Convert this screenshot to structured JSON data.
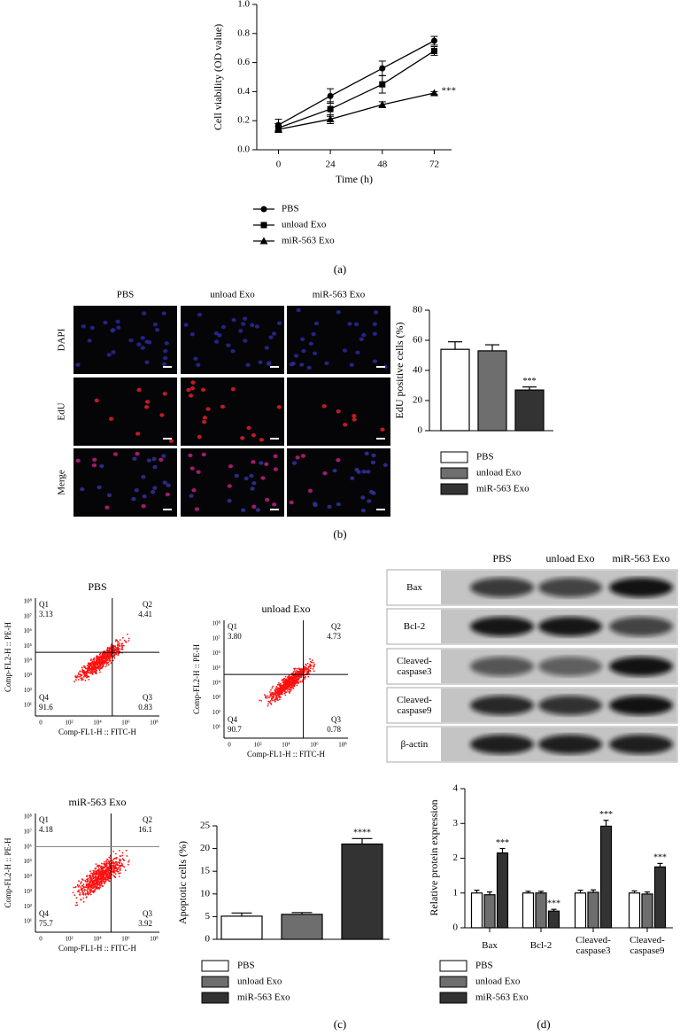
{
  "panel_labels": [
    "(a)",
    "(b)",
    "(c)",
    "(d)"
  ],
  "chart_data": [
    {
      "type": "line",
      "xlabel": "Time (h)",
      "ylabel": "Cell viability (OD value)",
      "x": [
        0,
        24,
        48,
        72
      ],
      "xlim": [
        -10,
        80
      ],
      "xticks": [
        0,
        24,
        48,
        72
      ],
      "ylim": [
        0,
        1
      ],
      "yticks": [
        {
          "value": 0,
          "label": "0.0"
        },
        0.2,
        0.4,
        0.6,
        0.8,
        {
          "value": 1,
          "label": "1.0"
        }
      ],
      "legend": "bottom",
      "series": [
        {
          "name": "PBS",
          "color": "#000000",
          "marker": "circle",
          "values": [
            0.17,
            0.37,
            0.56,
            0.75
          ],
          "errors": [
            0.04,
            0.05,
            0.05,
            0.03
          ]
        },
        {
          "name": "unload Exo",
          "color": "#000000",
          "marker": "square",
          "values": [
            0.15,
            0.28,
            0.45,
            0.68
          ],
          "errors": [
            0.03,
            0.05,
            0.06,
            0.03
          ]
        },
        {
          "name": "miR-563 Exo",
          "color": "#000000",
          "marker": "triangle",
          "values": [
            0.14,
            0.21,
            0.31,
            0.39
          ],
          "errors": [
            0.02,
            0.03,
            0.02,
            0.01
          ]
        }
      ],
      "annotations": [
        {
          "text": "***",
          "series": 2,
          "index": 3
        }
      ]
    },
    {
      "type": "bar",
      "ylabel": "EdU positive cells (%)",
      "ylim": [
        0,
        80
      ],
      "yticks": [
        0,
        20,
        40,
        60,
        80
      ],
      "legend": "bottom",
      "series": [
        {
          "name": "PBS",
          "color": "#ffffff",
          "values": [
            54
          ],
          "errors": [
            5
          ]
        },
        {
          "name": "unload Exo",
          "color": "#6e6e6e",
          "values": [
            53
          ],
          "errors": [
            4
          ]
        },
        {
          "name": "miR-563 Exo",
          "color": "#333333",
          "values": [
            27
          ],
          "errors": [
            2
          ]
        }
      ],
      "annotations": [
        {
          "text": "***",
          "series": 2,
          "index": 0
        }
      ]
    },
    {
      "type": "bar",
      "ylabel": "Apoptotic cells (%)",
      "ylim": [
        0,
        25
      ],
      "yticks": [
        0,
        5,
        10,
        15,
        20,
        25
      ],
      "legend": "bottom",
      "series": [
        {
          "name": "PBS",
          "color": "#ffffff",
          "values": [
            5.1
          ],
          "errors": [
            0.7
          ]
        },
        {
          "name": "unload Exo",
          "color": "#6e6e6e",
          "values": [
            5.5
          ],
          "errors": [
            0.4
          ]
        },
        {
          "name": "miR-563 Exo",
          "color": "#333333",
          "values": [
            21
          ],
          "errors": [
            1.2
          ]
        }
      ],
      "annotations": [
        {
          "text": "****",
          "series": 2,
          "index": 0
        }
      ]
    },
    {
      "type": "bar",
      "ylabel": "Relative protein expression",
      "ylim": [
        0,
        4
      ],
      "yticks": [
        0,
        1,
        2,
        3,
        4
      ],
      "legend": "bottom",
      "categories": [
        "Bax",
        "Bcl-2",
        "Cleaved-caspase3",
        "Cleaved-caspase9"
      ],
      "series": [
        {
          "name": "PBS",
          "color": "#ffffff",
          "values": [
            1.0,
            1.0,
            1.0,
            1.0
          ],
          "errors": [
            0.08,
            0.05,
            0.08,
            0.06
          ]
        },
        {
          "name": "unload Exo",
          "color": "#6e6e6e",
          "values": [
            0.95,
            1.0,
            1.02,
            0.97
          ],
          "errors": [
            0.08,
            0.05,
            0.07,
            0.06
          ]
        },
        {
          "name": "miR-563 Exo",
          "color": "#333333",
          "values": [
            2.15,
            0.48,
            2.92,
            1.75
          ],
          "errors": [
            0.13,
            0.05,
            0.17,
            0.1
          ]
        }
      ],
      "annotations": [
        {
          "text": "***",
          "series": 2,
          "index": 0
        },
        {
          "text": "***",
          "series": 2,
          "index": 1
        },
        {
          "text": "***",
          "series": 2,
          "index": 2
        },
        {
          "text": "***",
          "series": 2,
          "index": 3
        }
      ]
    }
  ],
  "microscopy": {
    "columns": [
      "PBS",
      "unload Exo",
      "miR-563 Exo"
    ],
    "rows": [
      "DAPI",
      "EdU",
      "Merge"
    ]
  },
  "flow_cytometry": {
    "xlabel": "Comp-FL1-H :: FITC-H",
    "ylabel": "Comp-FL2-H :: PE-H",
    "xticks": [
      "0",
      "10²",
      "10⁴",
      "10⁶",
      "10⁸"
    ],
    "yticks": [
      "10⁸",
      "10⁷",
      "10⁶",
      "10⁵",
      "10⁴",
      "10³",
      "10²",
      "10¹"
    ],
    "plots": [
      {
        "title": "PBS",
        "quadrants": [
          {
            "name": "Q1",
            "value": "3.13"
          },
          {
            "name": "Q2",
            "value": "4.41"
          },
          {
            "name": "Q3",
            "value": "0.83"
          },
          {
            "name": "Q4",
            "value": "91.6"
          }
        ]
      },
      {
        "title": "unload Exo",
        "quadrants": [
          {
            "name": "Q1",
            "value": "3.80"
          },
          {
            "name": "Q2",
            "value": "4.73"
          },
          {
            "name": "Q3",
            "value": "0.78"
          },
          {
            "name": "Q4",
            "value": "90.7"
          }
        ]
      },
      {
        "title": "miR-563 Exo",
        "quadrants": [
          {
            "name": "Q1",
            "value": "4.18"
          },
          {
            "name": "Q2",
            "value": "16.1"
          },
          {
            "name": "Q3",
            "value": "3.92"
          },
          {
            "name": "Q4",
            "value": "75.7"
          }
        ]
      }
    ]
  },
  "western_blot": {
    "columns": [
      "PBS",
      "unload Exo",
      "miR-563 Exo"
    ],
    "rows": [
      "Bax",
      "Bcl-2",
      "Cleaved-caspase3",
      "Cleaved-caspase9",
      "β-actin"
    ]
  }
}
